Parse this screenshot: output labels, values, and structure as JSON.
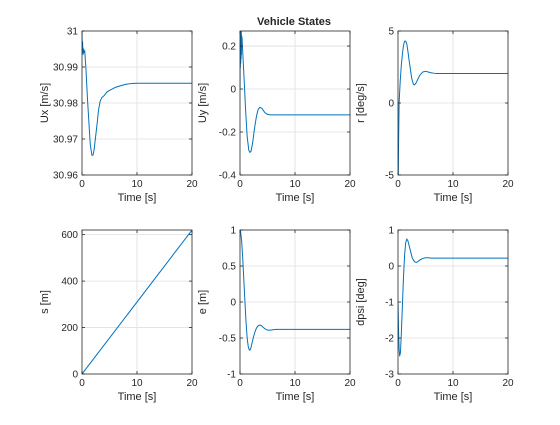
{
  "figure": {
    "title": "Vehicle States",
    "background": "#ffffff",
    "line_color": "#0072BD",
    "grid_color": "#dfdfdf",
    "axis_color": "#262626"
  },
  "chart_data": [
    {
      "type": "line",
      "ylabel": "Ux [m/s]",
      "xlabel": "Time [s]",
      "xlim": [
        0,
        20
      ],
      "ylim": [
        30.96,
        31
      ],
      "xticks": [
        0,
        10,
        20
      ],
      "xtick_labels": [
        "0",
        "10",
        "20"
      ],
      "yticks": [
        30.96,
        30.97,
        30.98,
        30.99,
        31
      ],
      "ytick_labels": [
        "30.96",
        "30.97",
        "30.98",
        "30.99",
        "31"
      ],
      "grid": true,
      "series": [
        {
          "x": [
            0,
            0.05,
            0.1,
            0.2,
            0.3,
            0.4,
            0.5,
            0.6,
            0.7,
            0.8,
            0.9,
            1.0,
            1.2,
            1.5,
            1.8,
            2.0,
            2.2,
            2.5,
            2.8,
            3.0,
            3.3,
            3.6,
            4.0,
            4.5,
            5.0,
            6.0,
            7.0,
            8.0,
            9.0,
            10.0,
            11.0,
            12.0,
            14.0,
            16.0,
            18.0,
            20.0
          ],
          "y": [
            31.0,
            30.994,
            30.997,
            30.9935,
            30.995,
            30.994,
            30.9945,
            30.992,
            30.99,
            30.987,
            30.984,
            30.981,
            30.976,
            30.9685,
            30.9655,
            30.9655,
            30.967,
            30.971,
            30.975,
            30.978,
            30.9805,
            30.9815,
            30.982,
            30.983,
            30.9835,
            30.9843,
            30.9848,
            30.9852,
            30.9854,
            30.9855,
            30.9855,
            30.9855,
            30.9855,
            30.9855,
            30.9855,
            30.9855
          ]
        }
      ]
    },
    {
      "type": "line",
      "ylabel": "Uy [m/s]",
      "xlabel": "Time [s]",
      "xlim": [
        0,
        20
      ],
      "ylim": [
        -0.4,
        0.27
      ],
      "xticks": [
        0,
        10,
        20
      ],
      "xtick_labels": [
        "0",
        "10",
        "20"
      ],
      "yticks": [
        -0.4,
        -0.2,
        0,
        0.2
      ],
      "ytick_labels": [
        "-0.4",
        "-0.2",
        "0",
        "0.2"
      ],
      "grid": true,
      "series": [
        {
          "x": [
            0,
            0.03,
            0.06,
            0.1,
            0.13,
            0.16,
            0.2,
            0.23,
            0.26,
            0.3,
            0.34,
            0.38,
            0.42,
            0.5,
            0.6,
            0.8,
            1.0,
            1.3,
            1.6,
            1.8,
            2.0,
            2.3,
            2.6,
            3.0,
            3.3,
            3.6,
            4.0,
            4.3,
            4.6,
            5.0,
            5.5,
            6.0,
            7.0,
            8.0,
            10.0,
            12.0,
            15.0,
            20.0
          ],
          "y": [
            0,
            0.27,
            0.1,
            0.27,
            0.12,
            0.27,
            0.14,
            0.27,
            0.16,
            0.25,
            0.2,
            0.24,
            0.21,
            0.17,
            0.12,
            0.02,
            -0.09,
            -0.22,
            -0.285,
            -0.295,
            -0.29,
            -0.25,
            -0.19,
            -0.125,
            -0.095,
            -0.085,
            -0.09,
            -0.102,
            -0.112,
            -0.118,
            -0.12,
            -0.12,
            -0.12,
            -0.12,
            -0.12,
            -0.12,
            -0.12,
            -0.12
          ]
        }
      ]
    },
    {
      "type": "line",
      "ylabel": "r [deg/s]",
      "xlabel": "Time [s]",
      "xlim": [
        0,
        20
      ],
      "ylim": [
        -5,
        5
      ],
      "xticks": [
        0,
        10,
        20
      ],
      "xtick_labels": [
        "0",
        "10",
        "20"
      ],
      "yticks": [
        -5,
        0,
        5
      ],
      "ytick_labels": [
        "-5",
        "0",
        "5"
      ],
      "grid": true,
      "series": [
        {
          "x": [
            0,
            0.02,
            0.05,
            0.1,
            0.2,
            0.4,
            0.6,
            0.8,
            1.0,
            1.2,
            1.4,
            1.6,
            1.8,
            2.0,
            2.2,
            2.5,
            2.8,
            3.0,
            3.3,
            3.6,
            4.0,
            4.5,
            5.0,
            5.5,
            6.0,
            6.5,
            7.0,
            8.0,
            10.0,
            12.0,
            15.0,
            20.0
          ],
          "y": [
            -5,
            -5,
            -5,
            -3,
            0,
            1.5,
            2.6,
            3.4,
            4.0,
            4.3,
            4.3,
            4.1,
            3.6,
            3.0,
            2.5,
            1.7,
            1.3,
            1.25,
            1.4,
            1.65,
            1.95,
            2.15,
            2.2,
            2.15,
            2.1,
            2.07,
            2.05,
            2.05,
            2.05,
            2.05,
            2.05,
            2.05
          ]
        }
      ]
    },
    {
      "type": "line",
      "ylabel": "s [m]",
      "xlabel": "Time [s]",
      "xlim": [
        0,
        20
      ],
      "ylim": [
        0,
        620
      ],
      "xticks": [
        0,
        10,
        20
      ],
      "xtick_labels": [
        "0",
        "10",
        "20"
      ],
      "yticks": [
        0,
        200,
        400,
        600
      ],
      "ytick_labels": [
        "0",
        "200",
        "400",
        "600"
      ],
      "grid": true,
      "series": [
        {
          "x": [
            0,
            20
          ],
          "y": [
            0,
            619.7
          ]
        }
      ]
    },
    {
      "type": "line",
      "ylabel": "e [m]",
      "xlabel": "Time [s]",
      "xlim": [
        0,
        20
      ],
      "ylim": [
        -1,
        1
      ],
      "xticks": [
        0,
        10,
        20
      ],
      "xtick_labels": [
        "0",
        "10",
        "20"
      ],
      "yticks": [
        -1,
        -0.5,
        0,
        0.5,
        1
      ],
      "ytick_labels": [
        "-1",
        "-0.5",
        "0",
        "0.5",
        "1"
      ],
      "grid": true,
      "series": [
        {
          "x": [
            0,
            0.1,
            0.3,
            0.5,
            0.7,
            0.9,
            1.1,
            1.3,
            1.5,
            1.7,
            1.9,
            2.1,
            2.4,
            2.7,
            3.0,
            3.3,
            3.6,
            3.9,
            4.2,
            4.5,
            5.0,
            5.5,
            6.0,
            6.5,
            7.0,
            8.0,
            10.0,
            12.0,
            15.0,
            20.0
          ],
          "y": [
            1.0,
            0.98,
            0.85,
            0.6,
            0.3,
            0.0,
            -0.28,
            -0.5,
            -0.62,
            -0.67,
            -0.66,
            -0.6,
            -0.5,
            -0.42,
            -0.36,
            -0.33,
            -0.32,
            -0.33,
            -0.35,
            -0.37,
            -0.39,
            -0.39,
            -0.385,
            -0.38,
            -0.38,
            -0.38,
            -0.38,
            -0.38,
            -0.38,
            -0.38
          ]
        }
      ]
    },
    {
      "type": "line",
      "ylabel": "dpsi [deg]",
      "xlabel": "Time [s]",
      "xlim": [
        0,
        20
      ],
      "ylim": [
        -3,
        1
      ],
      "xticks": [
        0,
        10,
        20
      ],
      "xtick_labels": [
        "0",
        "10",
        "20"
      ],
      "yticks": [
        -3,
        -2,
        -1,
        0,
        1
      ],
      "ytick_labels": [
        "-3",
        "-2",
        "-1",
        "0",
        "1"
      ],
      "grid": true,
      "series": [
        {
          "x": [
            0,
            0.1,
            0.2,
            0.3,
            0.45,
            0.6,
            0.8,
            1.0,
            1.2,
            1.4,
            1.6,
            1.8,
            2.0,
            2.3,
            2.6,
            3.0,
            3.3,
            3.6,
            4.0,
            4.5,
            5.0,
            5.5,
            6.0,
            7.0,
            8.0,
            10.0,
            12.0,
            15.0,
            20.0
          ],
          "y": [
            -1.0,
            -1.8,
            -2.3,
            -2.5,
            -2.4,
            -1.9,
            -1.1,
            -0.3,
            0.3,
            0.65,
            0.75,
            0.7,
            0.58,
            0.4,
            0.22,
            0.12,
            0.1,
            0.12,
            0.17,
            0.21,
            0.23,
            0.23,
            0.22,
            0.22,
            0.22,
            0.22,
            0.22,
            0.22,
            0.22
          ]
        }
      ]
    }
  ]
}
